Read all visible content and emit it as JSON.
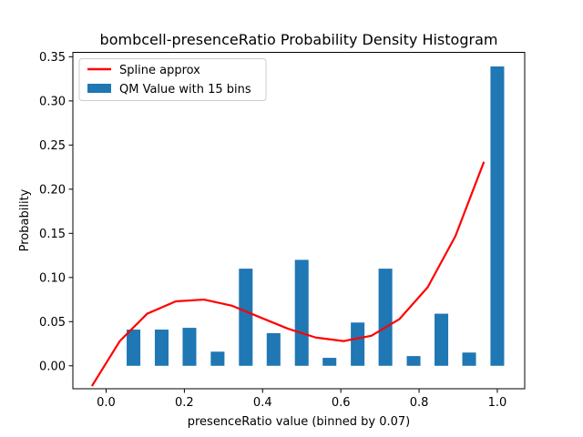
{
  "chart_data": {
    "type": "bar",
    "title": "bombcell-presenceRatio Probability Density Histogram",
    "xlabel": "presenceRatio value (binned by 0.07)",
    "ylabel": "Probability",
    "xlim": [
      -0.085,
      1.07
    ],
    "ylim": [
      -0.026,
      0.355
    ],
    "xticks": [
      0.0,
      0.2,
      0.4,
      0.6,
      0.8,
      1.0
    ],
    "xtick_labels": [
      "0.0",
      "0.2",
      "0.4",
      "0.6",
      "0.8",
      "1.0"
    ],
    "yticks": [
      0.0,
      0.05,
      0.1,
      0.15,
      0.2,
      0.25,
      0.3,
      0.35
    ],
    "ytick_labels": [
      "0.00",
      "0.05",
      "0.10",
      "0.15",
      "0.20",
      "0.25",
      "0.30",
      "0.35"
    ],
    "legend_position": "top-left",
    "series": [
      {
        "name": "QM Value with 15 bins",
        "kind": "bar",
        "color": "#1f77b4",
        "bar_width": 0.035,
        "x": [
          0.07,
          0.142,
          0.213,
          0.285,
          0.357,
          0.428,
          0.5,
          0.571,
          0.643,
          0.714,
          0.786,
          0.857,
          0.928,
          1.0
        ],
        "values": [
          0.041,
          0.041,
          0.043,
          0.016,
          0.11,
          0.037,
          0.12,
          0.009,
          0.049,
          0.11,
          0.011,
          0.059,
          0.015,
          0.339
        ]
      },
      {
        "name": "Spline approx",
        "kind": "line",
        "color": "#ff0000",
        "x": [
          -0.035,
          0.035,
          0.105,
          0.178,
          0.25,
          0.322,
          0.393,
          0.465,
          0.536,
          0.607,
          0.678,
          0.75,
          0.822,
          0.893,
          0.965
        ],
        "values": [
          -0.022,
          0.028,
          0.059,
          0.073,
          0.075,
          0.068,
          0.055,
          0.042,
          0.032,
          0.028,
          0.034,
          0.053,
          0.089,
          0.147,
          0.23
        ]
      }
    ]
  }
}
